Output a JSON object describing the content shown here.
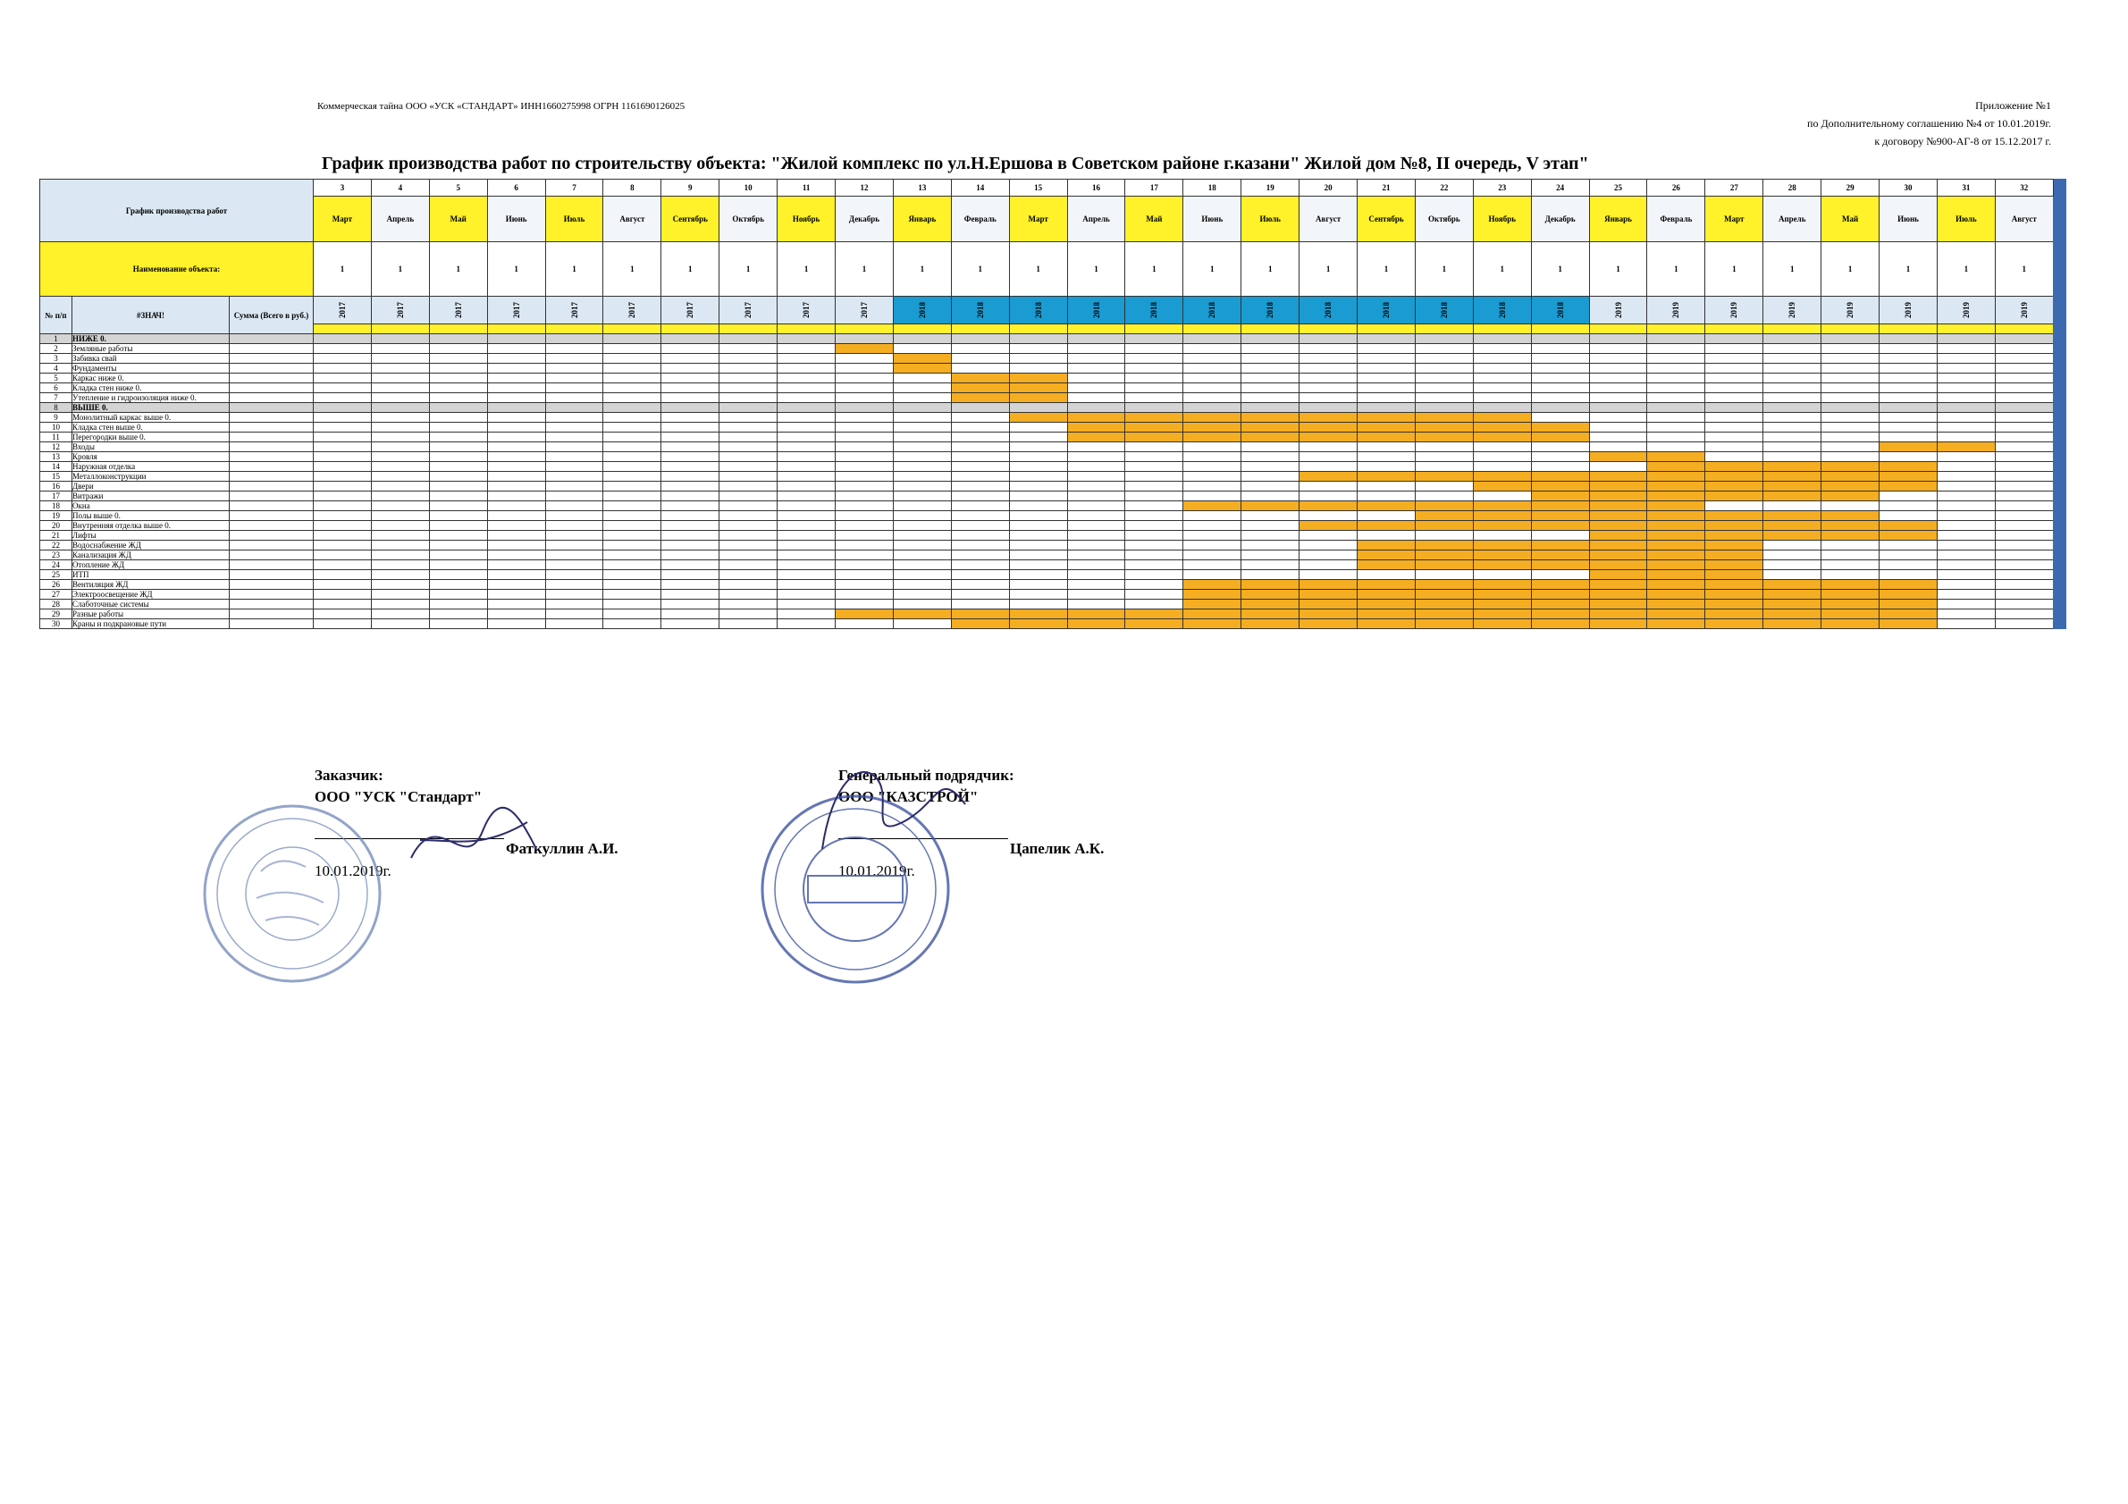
{
  "header": {
    "confidential": "Коммерческая тайна ООО «УСК «СТАНДАРТ» ИНН1660275998 ОГРН 1161690126025",
    "appendix_lines": [
      "Приложение №1",
      "по Дополнительному соглашению №4 от 10.01.2019г.",
      "к договору №900-АГ-8 от 15.12.2017 г."
    ]
  },
  "title": "График производства работ по строительству объекта: \"Жилой комплекс по ул.Н.Ершова в Советском районе г.казани\" Жилой дом №8, II очередь, V этап\"",
  "table": {
    "label_schedule": "График производства работ",
    "label_object": "Наименование объекта:",
    "label_npp": "№ п/п",
    "label_znach": "#ЗНАЧ!",
    "label_sum": "Сумма (Всего в руб.)",
    "columns": [
      {
        "num": "3",
        "month": "Март",
        "qty": "1",
        "year": "2017"
      },
      {
        "num": "4",
        "month": "Апрель",
        "qty": "1",
        "year": "2017"
      },
      {
        "num": "5",
        "month": "Май",
        "qty": "1",
        "year": "2017"
      },
      {
        "num": "6",
        "month": "Июнь",
        "qty": "1",
        "year": "2017"
      },
      {
        "num": "7",
        "month": "Июль",
        "qty": "1",
        "year": "2017"
      },
      {
        "num": "8",
        "month": "Август",
        "qty": "1",
        "year": "2017"
      },
      {
        "num": "9",
        "month": "Сентябрь",
        "qty": "1",
        "year": "2017"
      },
      {
        "num": "10",
        "month": "Октябрь",
        "qty": "1",
        "year": "2017"
      },
      {
        "num": "11",
        "month": "Ноябрь",
        "qty": "1",
        "year": "2017"
      },
      {
        "num": "12",
        "month": "Декабрь",
        "qty": "1",
        "year": "2017"
      },
      {
        "num": "13",
        "month": "Январь",
        "qty": "1",
        "year": "2018"
      },
      {
        "num": "14",
        "month": "Февраль",
        "qty": "1",
        "year": "2018"
      },
      {
        "num": "15",
        "month": "Март",
        "qty": "1",
        "year": "2018"
      },
      {
        "num": "16",
        "month": "Апрель",
        "qty": "1",
        "year": "2018"
      },
      {
        "num": "17",
        "month": "Май",
        "qty": "1",
        "year": "2018"
      },
      {
        "num": "18",
        "month": "Июнь",
        "qty": "1",
        "year": "2018"
      },
      {
        "num": "19",
        "month": "Июль",
        "qty": "1",
        "year": "2018"
      },
      {
        "num": "20",
        "month": "Август",
        "qty": "1",
        "year": "2018"
      },
      {
        "num": "21",
        "month": "Сентябрь",
        "qty": "1",
        "year": "2018"
      },
      {
        "num": "22",
        "month": "Октябрь",
        "qty": "1",
        "year": "2018"
      },
      {
        "num": "23",
        "month": "Ноябрь",
        "qty": "1",
        "year": "2018"
      },
      {
        "num": "24",
        "month": "Декабрь",
        "qty": "1",
        "year": "2018"
      },
      {
        "num": "25",
        "month": "Январь",
        "qty": "1",
        "year": "2019"
      },
      {
        "num": "26",
        "month": "Февраль",
        "qty": "1",
        "year": "2019"
      },
      {
        "num": "27",
        "month": "Март",
        "qty": "1",
        "year": "2019"
      },
      {
        "num": "28",
        "month": "Апрель",
        "qty": "1",
        "year": "2019"
      },
      {
        "num": "29",
        "month": "Май",
        "qty": "1",
        "year": "2019"
      },
      {
        "num": "30",
        "month": "Июнь",
        "qty": "1",
        "year": "2019"
      },
      {
        "num": "31",
        "month": "Июль",
        "qty": "1",
        "year": "2019"
      },
      {
        "num": "32",
        "month": "Август",
        "qty": "1",
        "year": "2019"
      }
    ],
    "rows": [
      {
        "n": "1",
        "name": "НИЖЕ 0.",
        "section": true,
        "bars": []
      },
      {
        "n": "2",
        "name": "Земляные работы",
        "bars": [
          [
            9,
            9
          ]
        ]
      },
      {
        "n": "3",
        "name": "Забивка свай",
        "bars": [
          [
            10,
            10
          ]
        ]
      },
      {
        "n": "4",
        "name": "Фундаменты",
        "bars": [
          [
            10,
            10
          ]
        ]
      },
      {
        "n": "5",
        "name": "Каркас ниже 0.",
        "bars": [
          [
            11,
            12
          ]
        ]
      },
      {
        "n": "6",
        "name": "Кладка стен ниже 0.",
        "bars": [
          [
            11,
            12
          ]
        ]
      },
      {
        "n": "7",
        "name": "Утепление и гидроизоляция ниже 0.",
        "bars": [
          [
            11,
            12
          ]
        ]
      },
      {
        "n": "8",
        "name": "ВЫШЕ 0.",
        "section": true,
        "bars": []
      },
      {
        "n": "9",
        "name": "Монолитный каркас выше 0.",
        "bars": [
          [
            12,
            20
          ]
        ]
      },
      {
        "n": "10",
        "name": "Кладка стен выше 0.",
        "bars": [
          [
            13,
            21
          ]
        ]
      },
      {
        "n": "11",
        "name": "Перегородки выше 0.",
        "bars": [
          [
            13,
            21
          ]
        ]
      },
      {
        "n": "12",
        "name": "Входы",
        "bars": [
          [
            27,
            28
          ]
        ]
      },
      {
        "n": "13",
        "name": "Кровля",
        "bars": [
          [
            22,
            23
          ]
        ]
      },
      {
        "n": "14",
        "name": "Наружная отделка",
        "bars": [
          [
            23,
            27
          ]
        ]
      },
      {
        "n": "15",
        "name": "Металлоконструкции",
        "bars": [
          [
            17,
            27
          ]
        ]
      },
      {
        "n": "16",
        "name": "Двери",
        "bars": [
          [
            20,
            27
          ]
        ]
      },
      {
        "n": "17",
        "name": "Витражи",
        "bars": [
          [
            21,
            26
          ]
        ]
      },
      {
        "n": "18",
        "name": "Окна",
        "bars": [
          [
            15,
            23
          ]
        ]
      },
      {
        "n": "19",
        "name": "Полы выше 0.",
        "bars": [
          [
            19,
            26
          ]
        ]
      },
      {
        "n": "20",
        "name": "Внутренняя отделка выше 0.",
        "bars": [
          [
            17,
            27
          ]
        ]
      },
      {
        "n": "21",
        "name": "Лифты",
        "bars": [
          [
            22,
            27
          ]
        ]
      },
      {
        "n": "22",
        "name": "Водоснабжение ЖД",
        "bars": [
          [
            18,
            24
          ]
        ]
      },
      {
        "n": "23",
        "name": "Канализация ЖД",
        "bars": [
          [
            18,
            24
          ]
        ]
      },
      {
        "n": "24",
        "name": "Отопление ЖД",
        "bars": [
          [
            18,
            24
          ]
        ]
      },
      {
        "n": "25",
        "name": "ИТП",
        "bars": [
          [
            22,
            24
          ]
        ]
      },
      {
        "n": "26",
        "name": "Вентиляция ЖД",
        "bars": [
          [
            15,
            27
          ]
        ]
      },
      {
        "n": "27",
        "name": "Электроосвещение ЖД",
        "bars": [
          [
            15,
            27
          ]
        ]
      },
      {
        "n": "28",
        "name": "Слаботочные системы",
        "bars": [
          [
            15,
            27
          ]
        ]
      },
      {
        "n": "29",
        "name": "Разные работы",
        "bars": [
          [
            9,
            27
          ]
        ]
      },
      {
        "n": "30",
        "name": "Краны и подкрановые пути",
        "bars": [
          [
            11,
            27
          ]
        ]
      }
    ]
  },
  "signatures": {
    "customer_label": "Заказчик:",
    "customer_org": "ООО \"УСК \"Стандарт\"",
    "customer_person": "Фаткуллин А.И.",
    "customer_date": "10.01.2019г.",
    "contractor_label": "Генеральный подрядчик:",
    "contractor_org": "ООО \"КАЗСТРОЙ\"",
    "contractor_person": "Цапелик А.К.",
    "contractor_date": "10.01.2019г."
  },
  "colors": {
    "bar": "#f5ae22",
    "yellow": "#fff12a",
    "label_blue": "#dbe8f4",
    "year_2018": "#1a9bd1",
    "band": "#3b6ab0"
  }
}
